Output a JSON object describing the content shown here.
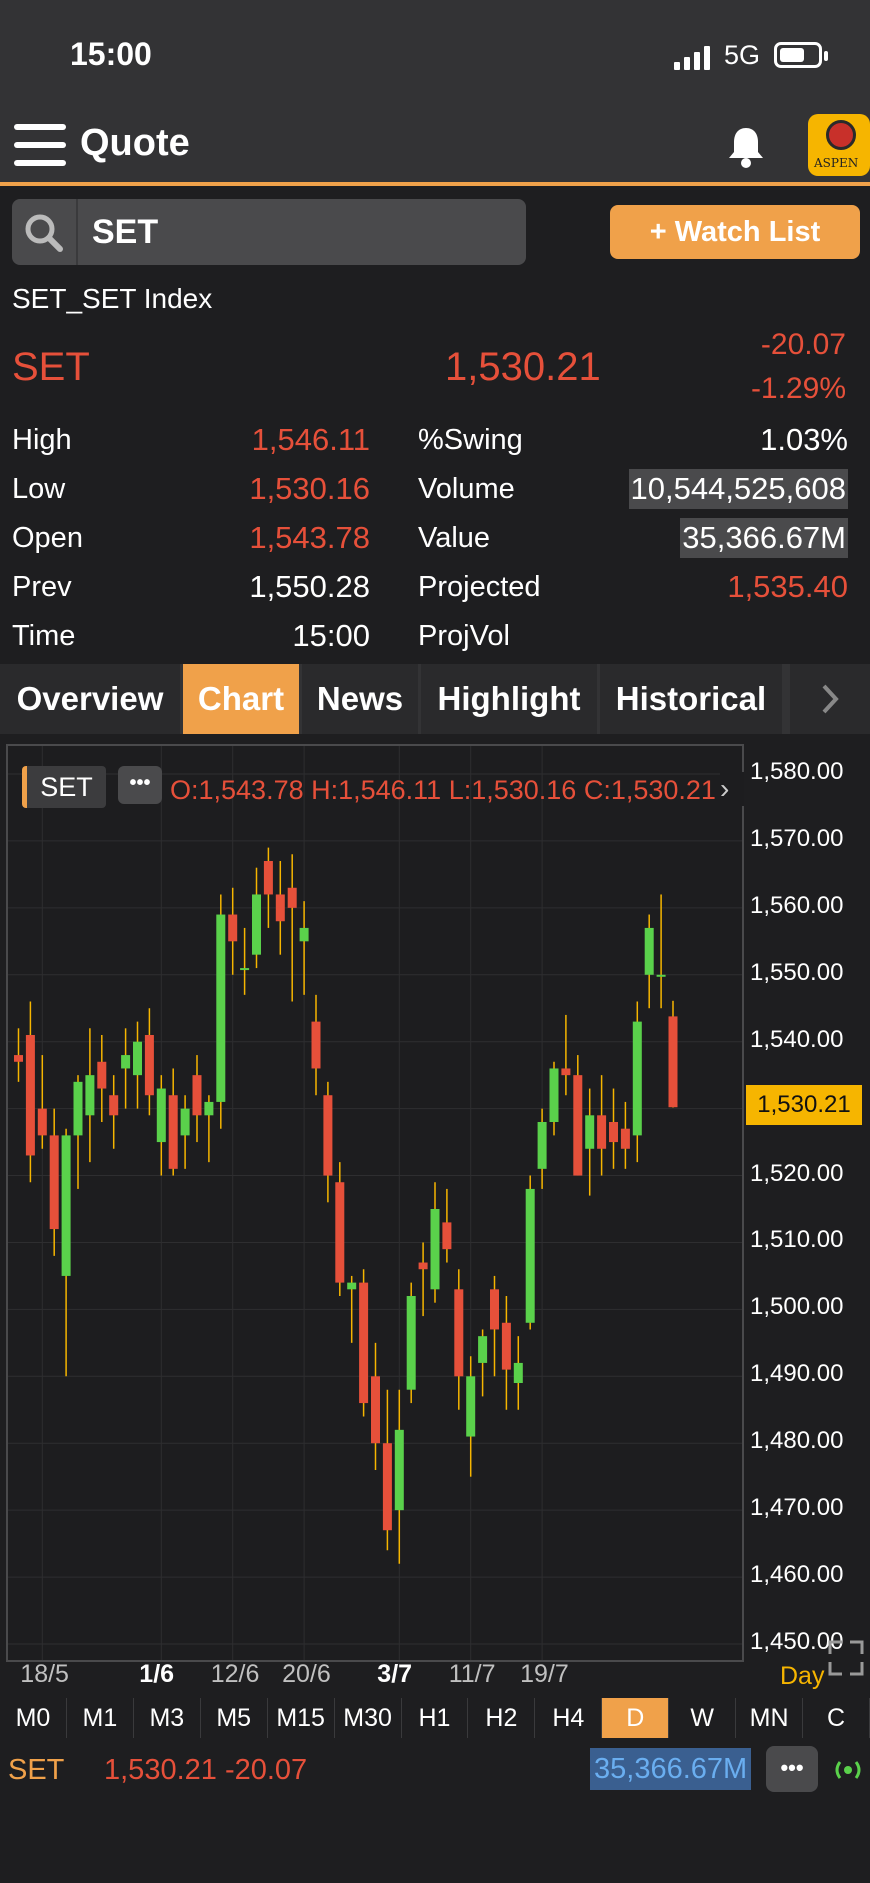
{
  "status_bar": {
    "time": "15:00",
    "network": "5G"
  },
  "header": {
    "title": "Quote",
    "logo_text": "ASPEN"
  },
  "search": {
    "value": "SET"
  },
  "watch_list": {
    "label": "+ Watch List"
  },
  "quote": {
    "full_name": "SET_SET Index",
    "symbol": "SET",
    "last": "1,530.21",
    "change": "-20.07",
    "change_pct": "-1.29%",
    "stats_left": [
      {
        "label": "High",
        "value": "1,546.11",
        "color": "#e6503a"
      },
      {
        "label": "Low",
        "value": "1,530.16",
        "color": "#e6503a"
      },
      {
        "label": "Open",
        "value": "1,543.78",
        "color": "#e6503a"
      },
      {
        "label": "Prev",
        "value": "1,550.28",
        "color": "#ffffff"
      },
      {
        "label": "Time",
        "value": "15:00",
        "color": "#ffffff"
      }
    ],
    "stats_right": [
      {
        "label": "%Swing",
        "value": "1.03%",
        "color": "#ffffff",
        "highlight": false
      },
      {
        "label": "Volume",
        "value": "10,544,525,608",
        "color": "#ffffff",
        "highlight": true
      },
      {
        "label": "Value",
        "value": "35,366.67M",
        "color": "#ffffff",
        "highlight": true
      },
      {
        "label": "Projected",
        "value": "1,535.40",
        "color": "#e6503a",
        "highlight": false
      },
      {
        "label": "ProjVol",
        "value": "",
        "color": "#ffffff",
        "highlight": false
      }
    ]
  },
  "tabs": [
    {
      "label": "Overview",
      "active": false
    },
    {
      "label": "Chart",
      "active": true
    },
    {
      "label": "News",
      "active": false
    },
    {
      "label": "Highlight",
      "active": false
    },
    {
      "label": "Historical",
      "active": false
    }
  ],
  "chart_header": {
    "symbol_chip": "SET",
    "ohlc": "O:1,543.78  H:1,546.11  L:1,530.16  C:1,530.21"
  },
  "chart_data": {
    "type": "candlestick",
    "ylim": [
      1450,
      1580
    ],
    "y_ticks": [
      "1,580.00",
      "1,570.00",
      "1,560.00",
      "1,550.00",
      "1,540.00",
      "1,530.00",
      "1,520.00",
      "1,510.00",
      "1,500.00",
      "1,490.00",
      "1,480.00",
      "1,470.00",
      "1,460.00",
      "1,450.00"
    ],
    "y_tick_values": [
      1580,
      1570,
      1560,
      1550,
      1540,
      1530,
      1520,
      1510,
      1500,
      1490,
      1480,
      1470,
      1460,
      1450
    ],
    "current_price_label": "1,530.21",
    "current_price": 1530.21,
    "x_labels": [
      {
        "label": "18/5",
        "index": 2,
        "bold": false
      },
      {
        "label": "1/6",
        "index": 12,
        "bold": true
      },
      {
        "label": "12/6",
        "index": 18,
        "bold": false
      },
      {
        "label": "20/6",
        "index": 24,
        "bold": false
      },
      {
        "label": "3/7",
        "index": 32,
        "bold": true
      },
      {
        "label": "11/7",
        "index": 38,
        "bold": false
      },
      {
        "label": "19/7",
        "index": 44,
        "bold": false
      }
    ],
    "period_label": "Day",
    "up_color": "#5ad14b",
    "down_color": "#e6503a",
    "candles": [
      {
        "o": 1538,
        "h": 1542,
        "l": 1534,
        "c": 1537
      },
      {
        "o": 1541,
        "h": 1546,
        "l": 1519,
        "c": 1523
      },
      {
        "o": 1530,
        "h": 1538,
        "l": 1524,
        "c": 1526
      },
      {
        "o": 1526,
        "h": 1530,
        "l": 1508,
        "c": 1512
      },
      {
        "o": 1505,
        "h": 1527,
        "l": 1490,
        "c": 1526
      },
      {
        "o": 1526,
        "h": 1535,
        "l": 1518,
        "c": 1534
      },
      {
        "o": 1529,
        "h": 1542,
        "l": 1522,
        "c": 1535
      },
      {
        "o": 1537,
        "h": 1541,
        "l": 1528,
        "c": 1533
      },
      {
        "o": 1532,
        "h": 1535,
        "l": 1524,
        "c": 1529
      },
      {
        "o": 1536,
        "h": 1542,
        "l": 1530,
        "c": 1538
      },
      {
        "o": 1535,
        "h": 1543,
        "l": 1530,
        "c": 1540
      },
      {
        "o": 1541,
        "h": 1545,
        "l": 1529,
        "c": 1532
      },
      {
        "o": 1525,
        "h": 1535,
        "l": 1520,
        "c": 1533
      },
      {
        "o": 1532,
        "h": 1536,
        "l": 1520,
        "c": 1521
      },
      {
        "o": 1526,
        "h": 1532,
        "l": 1521,
        "c": 1530
      },
      {
        "o": 1535,
        "h": 1538,
        "l": 1525,
        "c": 1529
      },
      {
        "o": 1529,
        "h": 1532,
        "l": 1522,
        "c": 1531
      },
      {
        "o": 1531,
        "h": 1562,
        "l": 1527,
        "c": 1559
      },
      {
        "o": 1559,
        "h": 1563,
        "l": 1550,
        "c": 1555
      },
      {
        "o": 1551,
        "h": 1557,
        "l": 1547,
        "c": 1551
      },
      {
        "o": 1553,
        "h": 1566,
        "l": 1551,
        "c": 1562
      },
      {
        "o": 1567,
        "h": 1569,
        "l": 1557,
        "c": 1562
      },
      {
        "o": 1562,
        "h": 1567,
        "l": 1553,
        "c": 1558
      },
      {
        "o": 1563,
        "h": 1568,
        "l": 1546,
        "c": 1560
      },
      {
        "o": 1555,
        "h": 1561,
        "l": 1547,
        "c": 1557
      },
      {
        "o": 1543,
        "h": 1547,
        "l": 1532,
        "c": 1536
      },
      {
        "o": 1532,
        "h": 1534,
        "l": 1516,
        "c": 1520
      },
      {
        "o": 1519,
        "h": 1522,
        "l": 1502,
        "c": 1504
      },
      {
        "o": 1503,
        "h": 1505,
        "l": 1495,
        "c": 1504
      },
      {
        "o": 1504,
        "h": 1506,
        "l": 1484,
        "c": 1486
      },
      {
        "o": 1490,
        "h": 1495,
        "l": 1476,
        "c": 1480
      },
      {
        "o": 1480,
        "h": 1488,
        "l": 1464,
        "c": 1467
      },
      {
        "o": 1470,
        "h": 1488,
        "l": 1462,
        "c": 1482
      },
      {
        "o": 1488,
        "h": 1504,
        "l": 1486,
        "c": 1502
      },
      {
        "o": 1507,
        "h": 1510,
        "l": 1499,
        "c": 1506
      },
      {
        "o": 1503,
        "h": 1519,
        "l": 1501,
        "c": 1515
      },
      {
        "o": 1513,
        "h": 1518,
        "l": 1507,
        "c": 1509
      },
      {
        "o": 1503,
        "h": 1506,
        "l": 1485,
        "c": 1490
      },
      {
        "o": 1481,
        "h": 1493,
        "l": 1475,
        "c": 1490
      },
      {
        "o": 1492,
        "h": 1497,
        "l": 1487,
        "c": 1496
      },
      {
        "o": 1503,
        "h": 1505,
        "l": 1490,
        "c": 1497
      },
      {
        "o": 1498,
        "h": 1502,
        "l": 1485,
        "c": 1491
      },
      {
        "o": 1489,
        "h": 1496,
        "l": 1485,
        "c": 1492
      },
      {
        "o": 1498,
        "h": 1520,
        "l": 1497,
        "c": 1518
      },
      {
        "o": 1521,
        "h": 1530,
        "l": 1518,
        "c": 1528
      },
      {
        "o": 1528,
        "h": 1537,
        "l": 1526,
        "c": 1536
      },
      {
        "o": 1536,
        "h": 1544,
        "l": 1532,
        "c": 1535
      },
      {
        "o": 1535,
        "h": 1538,
        "l": 1520,
        "c": 1520
      },
      {
        "o": 1524,
        "h": 1533,
        "l": 1517,
        "c": 1529
      },
      {
        "o": 1529,
        "h": 1535,
        "l": 1520,
        "c": 1524
      },
      {
        "o": 1528,
        "h": 1533,
        "l": 1521,
        "c": 1525
      },
      {
        "o": 1527,
        "h": 1531,
        "l": 1521,
        "c": 1524
      },
      {
        "o": 1526,
        "h": 1546,
        "l": 1522,
        "c": 1543
      },
      {
        "o": 1550,
        "h": 1559,
        "l": 1545,
        "c": 1557
      },
      {
        "o": 1550,
        "h": 1562,
        "l": 1545,
        "c": 1550
      },
      {
        "o": 1543.78,
        "h": 1546.11,
        "l": 1530.16,
        "c": 1530.21
      }
    ]
  },
  "timeframes": [
    {
      "label": "M0",
      "active": false
    },
    {
      "label": "M1",
      "active": false
    },
    {
      "label": "M3",
      "active": false
    },
    {
      "label": "M5",
      "active": false
    },
    {
      "label": "M15",
      "active": false
    },
    {
      "label": "M30",
      "active": false
    },
    {
      "label": "H1",
      "active": false
    },
    {
      "label": "H2",
      "active": false
    },
    {
      "label": "H4",
      "active": false
    },
    {
      "label": "D",
      "active": true
    },
    {
      "label": "W",
      "active": false
    },
    {
      "label": "MN",
      "active": false
    },
    {
      "label": "C",
      "active": false
    }
  ],
  "footer": {
    "symbol": "SET",
    "price_change": "1,530.21 -20.07",
    "value": "35,366.67M"
  },
  "icons": {
    "menu": "hamburger-menu-icon",
    "bell": "bell-icon",
    "search": "search-icon",
    "more": "chevron-right-icon",
    "expand": "expand-icon",
    "connection": "connection-icon"
  },
  "colors": {
    "accent": "#f0a14a",
    "down": "#e6503a",
    "up": "#5ad14b",
    "highlight": "#f6b500",
    "value_blue": "#6aaef0"
  }
}
